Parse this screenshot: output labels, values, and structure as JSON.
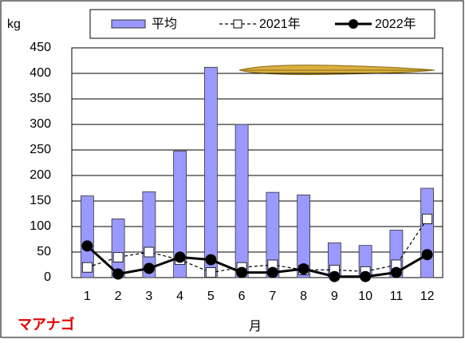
{
  "chart_data": {
    "type": "bar-line",
    "y_axis_label": "kg",
    "x_axis_label": "月",
    "annotation": "マアナゴ",
    "categories": [
      "1",
      "2",
      "3",
      "4",
      "5",
      "6",
      "7",
      "8",
      "9",
      "10",
      "11",
      "12"
    ],
    "ylim": [
      0,
      450
    ],
    "yticks": [
      0,
      50,
      100,
      150,
      200,
      250,
      300,
      350,
      400,
      450
    ],
    "grid": true,
    "series": [
      {
        "name": "平均",
        "kind": "bar",
        "color": "#9999ff",
        "values": [
          160,
          115,
          168,
          248,
          412,
          300,
          167,
          162,
          68,
          63,
          93,
          175
        ]
      },
      {
        "name": "2021年",
        "kind": "line",
        "color": "#000000",
        "values": [
          20,
          40,
          50,
          35,
          10,
          20,
          25,
          15,
          15,
          12,
          25,
          115
        ]
      },
      {
        "name": "2022年",
        "kind": "line",
        "color": "#000000",
        "values": [
          62,
          7,
          18,
          40,
          35,
          10,
          10,
          17,
          2,
          2,
          10,
          45
        ]
      }
    ]
  }
}
